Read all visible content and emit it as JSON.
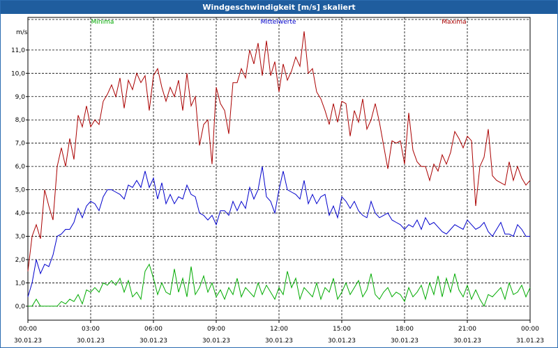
{
  "window": {
    "title": "Windgeschwindigkeit [m/s] skaliert"
  },
  "chart_data": {
    "type": "line",
    "title": "Windgeschwindigkeit [m/s] skaliert",
    "ylabel": "m/s",
    "ylim": [
      -0.6,
      12.4
    ],
    "xlim": [
      0,
      24
    ],
    "grid": true,
    "legend_position": "top",
    "y_ticks": [
      "0,0",
      "1,0",
      "2,0",
      "3,0",
      "4,0",
      "5,0",
      "6,0",
      "7,0",
      "8,0",
      "9,0",
      "10,0",
      "11,0"
    ],
    "x_ticks": [
      {
        "time": "00:00",
        "date": "30.01.23"
      },
      {
        "time": "03:00",
        "date": "30.01.23"
      },
      {
        "time": "06:00",
        "date": "30.01.23"
      },
      {
        "time": "09:00",
        "date": "30.01.23"
      },
      {
        "time": "12:00",
        "date": "30.01.23"
      },
      {
        "time": "15:00",
        "date": "30.01.23"
      },
      {
        "time": "18:00",
        "date": "30.01.23"
      },
      {
        "time": "21:00",
        "date": "30.01.23"
      },
      {
        "time": "00:00",
        "date": "31.01.23"
      }
    ],
    "series": [
      {
        "name": "Minima",
        "color": "#00aa00",
        "x": [
          0,
          0.2,
          0.4,
          0.6,
          0.8,
          1,
          1.2,
          1.4,
          1.6,
          1.8,
          2,
          2.2,
          2.4,
          2.6,
          2.8,
          3,
          3.2,
          3.4,
          3.6,
          3.8,
          4,
          4.2,
          4.4,
          4.6,
          4.8,
          5,
          5.2,
          5.4,
          5.6,
          5.8,
          6,
          6.2,
          6.4,
          6.6,
          6.8,
          7,
          7.2,
          7.4,
          7.6,
          7.8,
          8,
          8.2,
          8.4,
          8.6,
          8.8,
          9,
          9.2,
          9.4,
          9.6,
          9.8,
          10,
          10.2,
          10.4,
          10.6,
          10.8,
          11,
          11.2,
          11.4,
          11.6,
          11.8,
          12,
          12.2,
          12.4,
          12.6,
          12.8,
          13,
          13.2,
          13.4,
          13.6,
          13.8,
          14,
          14.2,
          14.4,
          14.6,
          14.8,
          15,
          15.2,
          15.4,
          15.6,
          15.8,
          16,
          16.2,
          16.4,
          16.6,
          16.8,
          17,
          17.2,
          17.4,
          17.6,
          17.8,
          18,
          18.2,
          18.4,
          18.6,
          18.8,
          19,
          19.2,
          19.4,
          19.6,
          19.8,
          20,
          20.2,
          20.4,
          20.6,
          20.8,
          21,
          21.2,
          21.4,
          21.6,
          21.8,
          22,
          22.2,
          22.4,
          22.6,
          22.8,
          23,
          23.2,
          23.4,
          23.6,
          23.8,
          24
        ],
        "values": [
          0,
          0,
          0.3,
          0,
          0,
          0,
          0,
          0,
          0.2,
          0.1,
          0.3,
          0.2,
          0.5,
          0.1,
          0.7,
          0.6,
          0.8,
          0.6,
          1.0,
          0.9,
          1.1,
          0.9,
          1.2,
          0.6,
          1.1,
          0.4,
          0.6,
          0.3,
          1.5,
          1.8,
          1.2,
          0.5,
          1.0,
          0.6,
          0.5,
          1.6,
          0.6,
          1.2,
          0.4,
          1.7,
          0.5,
          0.8,
          1.3,
          0.6,
          1.0,
          0.4,
          0.7,
          0.3,
          0.8,
          0.5,
          1.2,
          0.4,
          0.8,
          0.6,
          0.4,
          1.0,
          0.5,
          0.9,
          0.6,
          0.3,
          0.8,
          0.5,
          1.5,
          0.8,
          1.2,
          0.3,
          0.8,
          0.6,
          0.4,
          1.0,
          0.3,
          0.8,
          0.6,
          1.2,
          0.3,
          0.6,
          1.0,
          0.5,
          0.8,
          1.1,
          0.4,
          0.7,
          1.4,
          0.5,
          0.3,
          0.6,
          0.8,
          0.4,
          0.6,
          0.5,
          0.2,
          0.8,
          0.4,
          0.6,
          0.9,
          0.3,
          1.0,
          0.5,
          1.3,
          0.4,
          1.2,
          0.6,
          1.4,
          0.7,
          0.4,
          0.9,
          0.3,
          0.7,
          0.3,
          0.0,
          0.5,
          0.4,
          0.6,
          0.8,
          0.3,
          1.0,
          0.5,
          0.6,
          0.9,
          0.4,
          0.8
        ]
      },
      {
        "name": "Mittelwerte",
        "color": "#0000cc",
        "x": [
          0,
          0.2,
          0.4,
          0.6,
          0.8,
          1,
          1.2,
          1.4,
          1.6,
          1.8,
          2,
          2.2,
          2.4,
          2.6,
          2.8,
          3,
          3.2,
          3.4,
          3.6,
          3.8,
          4,
          4.2,
          4.4,
          4.6,
          4.8,
          5,
          5.2,
          5.4,
          5.6,
          5.8,
          6,
          6.2,
          6.4,
          6.6,
          6.8,
          7,
          7.2,
          7.4,
          7.6,
          7.8,
          8,
          8.2,
          8.4,
          8.6,
          8.8,
          9,
          9.2,
          9.4,
          9.6,
          9.8,
          10,
          10.2,
          10.4,
          10.6,
          10.8,
          11,
          11.2,
          11.4,
          11.6,
          11.8,
          12,
          12.2,
          12.4,
          12.6,
          12.8,
          13,
          13.2,
          13.4,
          13.6,
          13.8,
          14,
          14.2,
          14.4,
          14.6,
          14.8,
          15,
          15.2,
          15.4,
          15.6,
          15.8,
          16,
          16.2,
          16.4,
          16.6,
          16.8,
          17,
          17.2,
          17.4,
          17.6,
          17.8,
          18,
          18.2,
          18.4,
          18.6,
          18.8,
          19,
          19.2,
          19.4,
          19.6,
          19.8,
          20,
          20.2,
          20.4,
          20.6,
          20.8,
          21,
          21.2,
          21.4,
          21.6,
          21.8,
          22,
          22.2,
          22.4,
          22.6,
          22.8,
          23,
          23.2,
          23.4,
          23.6,
          23.8,
          24
        ],
        "values": [
          0.4,
          1.0,
          2.0,
          1.4,
          1.8,
          1.7,
          2.2,
          3.0,
          3.1,
          3.3,
          3.3,
          3.6,
          4.2,
          3.8,
          4.3,
          4.5,
          4.4,
          4.1,
          4.7,
          5.0,
          5.0,
          4.9,
          4.8,
          4.6,
          5.2,
          5.1,
          5.4,
          5.1,
          5.8,
          5.1,
          5.5,
          4.6,
          5.3,
          4.4,
          4.8,
          4.4,
          4.7,
          4.6,
          5.2,
          4.8,
          4.7,
          4.0,
          3.9,
          3.7,
          3.9,
          3.5,
          4.1,
          4.1,
          3.9,
          4.5,
          4.1,
          4.5,
          4.2,
          5.1,
          4.6,
          5.0,
          6.0,
          4.7,
          4.5,
          4.0,
          5.0,
          5.8,
          5.0,
          4.9,
          4.8,
          4.6,
          5.4,
          4.4,
          4.8,
          4.4,
          4.7,
          4.8,
          3.9,
          4.3,
          3.8,
          4.7,
          4.5,
          4.2,
          4.5,
          4.1,
          3.9,
          3.8,
          4.5,
          4.0,
          3.8,
          3.9,
          4.0,
          3.7,
          3.6,
          3.5,
          3.3,
          3.5,
          3.4,
          3.7,
          3.3,
          3.8,
          3.5,
          3.6,
          3.4,
          3.2,
          3.1,
          3.3,
          3.5,
          3.4,
          3.3,
          3.7,
          3.5,
          3.3,
          3.4,
          3.6,
          3.2,
          3.0,
          3.3,
          3.6,
          3.1,
          3.1,
          3.0,
          3.5,
          3.3,
          3.0,
          3.0
        ]
      },
      {
        "name": "Maxima",
        "color": "#aa0000",
        "x": [
          0,
          0.2,
          0.4,
          0.6,
          0.8,
          1,
          1.2,
          1.4,
          1.6,
          1.8,
          2,
          2.2,
          2.4,
          2.6,
          2.8,
          3,
          3.2,
          3.4,
          3.6,
          3.8,
          4,
          4.2,
          4.4,
          4.6,
          4.8,
          5,
          5.2,
          5.4,
          5.6,
          5.8,
          6,
          6.2,
          6.4,
          6.6,
          6.8,
          7,
          7.2,
          7.4,
          7.6,
          7.8,
          8,
          8.2,
          8.4,
          8.6,
          8.8,
          9,
          9.2,
          9.4,
          9.6,
          9.8,
          10,
          10.2,
          10.4,
          10.6,
          10.8,
          11,
          11.2,
          11.4,
          11.6,
          11.8,
          12,
          12.2,
          12.4,
          12.6,
          12.8,
          13,
          13.2,
          13.4,
          13.6,
          13.8,
          14,
          14.2,
          14.4,
          14.6,
          14.8,
          15,
          15.2,
          15.4,
          15.6,
          15.8,
          16,
          16.2,
          16.4,
          16.6,
          16.8,
          17,
          17.2,
          17.4,
          17.6,
          17.8,
          18,
          18.2,
          18.4,
          18.6,
          18.8,
          19,
          19.2,
          19.4,
          19.6,
          19.8,
          20,
          20.2,
          20.4,
          20.6,
          20.8,
          21,
          21.2,
          21.4,
          21.6,
          21.8,
          22,
          22.2,
          22.4,
          22.6,
          22.8,
          23,
          23.2,
          23.4,
          23.6,
          23.8,
          24
        ],
        "values": [
          1.5,
          3.0,
          3.5,
          2.9,
          5.0,
          4.3,
          3.7,
          6.0,
          6.8,
          6.0,
          7.2,
          6.3,
          8.2,
          7.7,
          8.6,
          7.7,
          8.0,
          7.8,
          8.8,
          9.1,
          9.5,
          9.0,
          9.8,
          8.5,
          9.7,
          9.3,
          10.0,
          9.6,
          9.9,
          8.4,
          9.9,
          10.2,
          9.4,
          8.8,
          9.4,
          9.0,
          9.7,
          8.4,
          10.0,
          8.6,
          9.0,
          6.9,
          7.8,
          8.0,
          6.1,
          9.4,
          8.7,
          8.4,
          7.4,
          9.6,
          9.6,
          10.2,
          9.8,
          11.0,
          10.4,
          11.3,
          9.9,
          11.4,
          9.9,
          10.5,
          9.2,
          10.4,
          9.7,
          10.1,
          10.7,
          10.3,
          11.8,
          10.0,
          10.2,
          9.2,
          8.9,
          8.4,
          7.8,
          8.7,
          7.9,
          8.8,
          8.7,
          7.3,
          8.4,
          7.9,
          8.9,
          7.6,
          8.0,
          8.7,
          7.9,
          6.9,
          5.9,
          7.1,
          7.0,
          7.1,
          6.1,
          8.3,
          6.7,
          6.2,
          6.0,
          6.0,
          5.4,
          6.1,
          5.8,
          6.5,
          6.1,
          6.6,
          7.5,
          7.2,
          6.8,
          7.3,
          7.1,
          4.3,
          6.0,
          6.4,
          7.6,
          5.6,
          5.4,
          5.3,
          5.2,
          6.2,
          5.4,
          6.0,
          5.5,
          5.2,
          5.4
        ]
      }
    ]
  }
}
